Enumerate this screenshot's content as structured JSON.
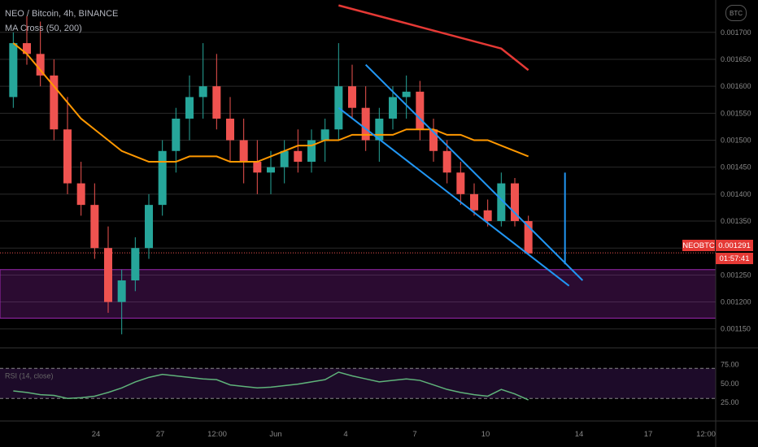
{
  "header": {
    "title": "NEO / Bitcoin, 4h, BINANCE",
    "indicator": "MA Cross (50, 200)",
    "currency": "BTC"
  },
  "price_tag": {
    "symbol": "NEOBTC",
    "price": "0.001291",
    "countdown": "01:57:41"
  },
  "colors": {
    "background": "#000000",
    "grid": "#2a2a2a",
    "up": "#26a69a",
    "down": "#ef5350",
    "ma_fast": "#ff9800",
    "ma_slow": "#e53935",
    "trendline": "#2196f3",
    "support_zone": "#9c27b0",
    "rsi_line": "#5fb37a",
    "rsi_band": "#2a0f3a"
  },
  "chart_data": {
    "type": "candlestick",
    "y_axis": {
      "ticks": [
        "0.001700",
        "0.001650",
        "0.001600",
        "0.001550",
        "0.001500",
        "0.001450",
        "0.001400",
        "0.001350",
        "0.001300",
        "0.001250",
        "0.001200",
        "0.001150"
      ],
      "range": [
        0.00113,
        0.00176
      ]
    },
    "x_axis": {
      "ticks": [
        "24",
        "27",
        "12:00",
        "Jun",
        "4",
        "7",
        "10",
        "14",
        "17",
        "12:00"
      ]
    },
    "current_price": 0.001291,
    "ohlc": [
      [
        0.00158,
        0.0017,
        0.00156,
        0.00168
      ],
      [
        0.00168,
        0.00173,
        0.00164,
        0.00166
      ],
      [
        0.00166,
        0.00172,
        0.0016,
        0.00162
      ],
      [
        0.00162,
        0.00165,
        0.0015,
        0.00152
      ],
      [
        0.00152,
        0.00158,
        0.0014,
        0.00142
      ],
      [
        0.00142,
        0.00146,
        0.00136,
        0.00138
      ],
      [
        0.00138,
        0.00142,
        0.00128,
        0.0013
      ],
      [
        0.0013,
        0.00134,
        0.00118,
        0.0012
      ],
      [
        0.0012,
        0.00126,
        0.00114,
        0.00124
      ],
      [
        0.00124,
        0.00132,
        0.00122,
        0.0013
      ],
      [
        0.0013,
        0.0014,
        0.00128,
        0.00138
      ],
      [
        0.00138,
        0.0015,
        0.00136,
        0.00148
      ],
      [
        0.00148,
        0.00156,
        0.00144,
        0.00154
      ],
      [
        0.00154,
        0.00162,
        0.0015,
        0.00158
      ],
      [
        0.00158,
        0.00168,
        0.00154,
        0.0016
      ],
      [
        0.0016,
        0.00166,
        0.00152,
        0.00154
      ],
      [
        0.00154,
        0.00158,
        0.00146,
        0.0015
      ],
      [
        0.0015,
        0.00154,
        0.00142,
        0.00146
      ],
      [
        0.00146,
        0.0015,
        0.0014,
        0.00144
      ],
      [
        0.00144,
        0.00148,
        0.0014,
        0.00145
      ],
      [
        0.00145,
        0.0015,
        0.00142,
        0.00148
      ],
      [
        0.00148,
        0.00152,
        0.00144,
        0.00146
      ],
      [
        0.00146,
        0.00152,
        0.00144,
        0.0015
      ],
      [
        0.0015,
        0.00154,
        0.00146,
        0.00152
      ],
      [
        0.00152,
        0.00168,
        0.0015,
        0.0016
      ],
      [
        0.0016,
        0.00164,
        0.00154,
        0.00156
      ],
      [
        0.00156,
        0.0016,
        0.00148,
        0.0015
      ],
      [
        0.0015,
        0.00156,
        0.00146,
        0.00154
      ],
      [
        0.00154,
        0.0016,
        0.00152,
        0.00158
      ],
      [
        0.00158,
        0.00162,
        0.00154,
        0.00159
      ],
      [
        0.00159,
        0.00161,
        0.0015,
        0.00152
      ],
      [
        0.00152,
        0.00154,
        0.00146,
        0.00148
      ],
      [
        0.00148,
        0.0015,
        0.00142,
        0.00144
      ],
      [
        0.00144,
        0.00146,
        0.00138,
        0.0014
      ],
      [
        0.0014,
        0.00142,
        0.00136,
        0.00137
      ],
      [
        0.00137,
        0.00139,
        0.00134,
        0.00135
      ],
      [
        0.00135,
        0.00144,
        0.00134,
        0.00142
      ],
      [
        0.00142,
        0.00143,
        0.00134,
        0.00135
      ],
      [
        0.00135,
        0.00136,
        0.00129,
        0.00129
      ]
    ],
    "ma_fast": [
      0.00168,
      0.00166,
      0.00163,
      0.0016,
      0.00157,
      0.00154,
      0.00152,
      0.0015,
      0.00148,
      0.00147,
      0.00146,
      0.00146,
      0.00146,
      0.00147,
      0.00147,
      0.00147,
      0.00146,
      0.00146,
      0.00146,
      0.00147,
      0.00148,
      0.00149,
      0.00149,
      0.0015,
      0.0015,
      0.00151,
      0.00151,
      0.00151,
      0.00151,
      0.00152,
      0.00152,
      0.00152,
      0.00151,
      0.00151,
      0.0015,
      0.0015,
      0.00149,
      0.00148,
      0.00147
    ],
    "ma_slow_points": {
      "x_index": [
        24,
        30,
        36,
        38
      ],
      "values": [
        0.00175,
        0.00171,
        0.00167,
        0.00163
      ]
    },
    "trendlines": [
      {
        "from": [
          24,
          0.00156
        ],
        "to": [
          41,
          0.00123
        ]
      },
      {
        "from": [
          26,
          0.00164
        ],
        "to": [
          42,
          0.00124
        ]
      }
    ],
    "support_zone": [
      0.00117,
      0.00126
    ],
    "rsi": {
      "label": "RSI (14, close)",
      "ticks": [
        "75.00",
        "50.00",
        "25.00"
      ],
      "upper": 70,
      "lower": 30,
      "values": [
        40,
        38,
        35,
        34,
        30,
        31,
        33,
        38,
        44,
        52,
        58,
        62,
        60,
        58,
        56,
        55,
        48,
        46,
        44,
        45,
        47,
        49,
        52,
        55,
        65,
        60,
        56,
        52,
        54,
        56,
        54,
        48,
        42,
        38,
        35,
        33,
        42,
        36,
        28
      ]
    }
  }
}
